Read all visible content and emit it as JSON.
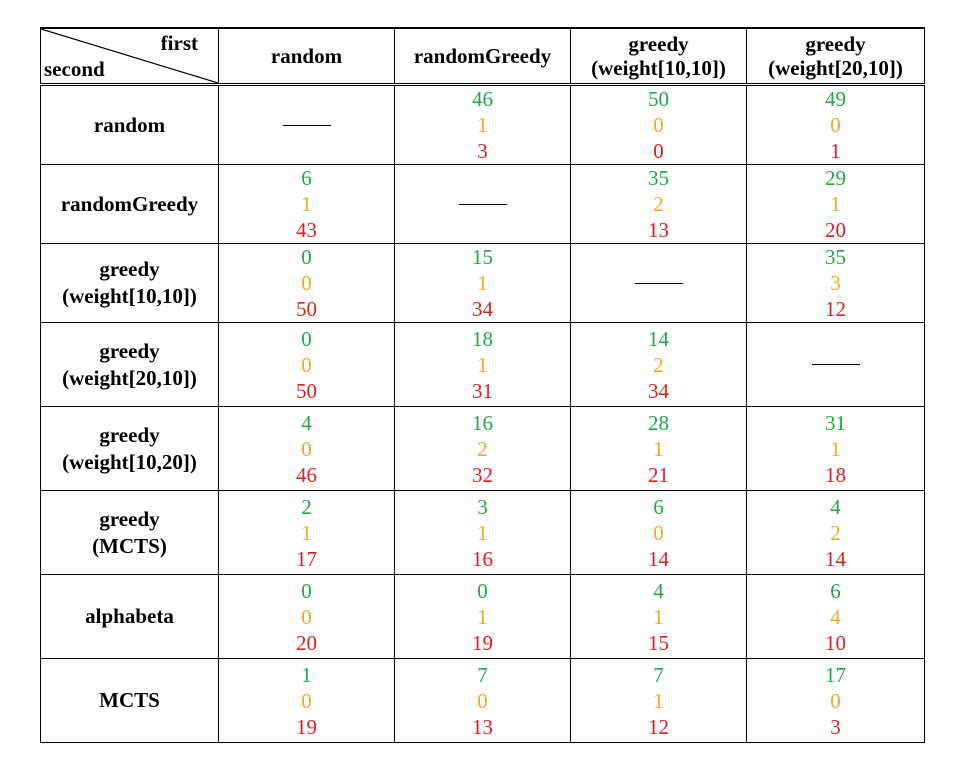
{
  "header": {
    "corner_first": "first",
    "corner_second": "second",
    "columns": [
      [
        "random"
      ],
      [
        "randomGreedy"
      ],
      [
        "greedy",
        "(weight[10,10])"
      ],
      [
        "greedy",
        "(weight[20,10])"
      ]
    ]
  },
  "rows": [
    {
      "label": [
        "random"
      ],
      "cells": [
        null,
        [
          "46",
          "1",
          "3"
        ],
        [
          "50",
          "0",
          "0"
        ],
        [
          "49",
          "0",
          "1"
        ]
      ]
    },
    {
      "label": [
        "randomGreedy"
      ],
      "cells": [
        [
          "6",
          "1",
          "43"
        ],
        null,
        [
          "35",
          "2",
          "13"
        ],
        [
          "29",
          "1",
          "20"
        ]
      ]
    },
    {
      "label": [
        "greedy",
        "(weight[10,10])"
      ],
      "cells": [
        [
          "0",
          "0",
          "50"
        ],
        [
          "15",
          "1",
          "34"
        ],
        null,
        [
          "35",
          "3",
          "12"
        ]
      ]
    },
    {
      "label": [
        "greedy",
        "(weight[20,10])"
      ],
      "cells": [
        [
          "0",
          "0",
          "50"
        ],
        [
          "18",
          "1",
          "31"
        ],
        [
          "14",
          "2",
          "34"
        ],
        null
      ]
    },
    {
      "label": [
        "greedy",
        "(weight[10,20])"
      ],
      "cells": [
        [
          "4",
          "0",
          "46"
        ],
        [
          "16",
          "2",
          "32"
        ],
        [
          "28",
          "1",
          "21"
        ],
        [
          "31",
          "1",
          "18"
        ]
      ]
    },
    {
      "label": [
        "greedy",
        "(MCTS)"
      ],
      "cells": [
        [
          "2",
          "1",
          "17"
        ],
        [
          "3",
          "1",
          "16"
        ],
        [
          "6",
          "0",
          "14"
        ],
        [
          "4",
          "2",
          "14"
        ]
      ]
    },
    {
      "label": [
        "alphabeta"
      ],
      "cells": [
        [
          "0",
          "0",
          "20"
        ],
        [
          "0",
          "1",
          "19"
        ],
        [
          "4",
          "1",
          "15"
        ],
        [
          "6",
          "4",
          "10"
        ]
      ]
    },
    {
      "label": [
        "MCTS"
      ],
      "cells": [
        [
          "1",
          "0",
          "19"
        ],
        [
          "7",
          "0",
          "13"
        ],
        [
          "7",
          "1",
          "12"
        ],
        [
          "17",
          "0",
          "3"
        ]
      ]
    }
  ],
  "colors": {
    "win": "#22a845",
    "draw": "#f0a91e",
    "loss": "#e01f1f"
  }
}
